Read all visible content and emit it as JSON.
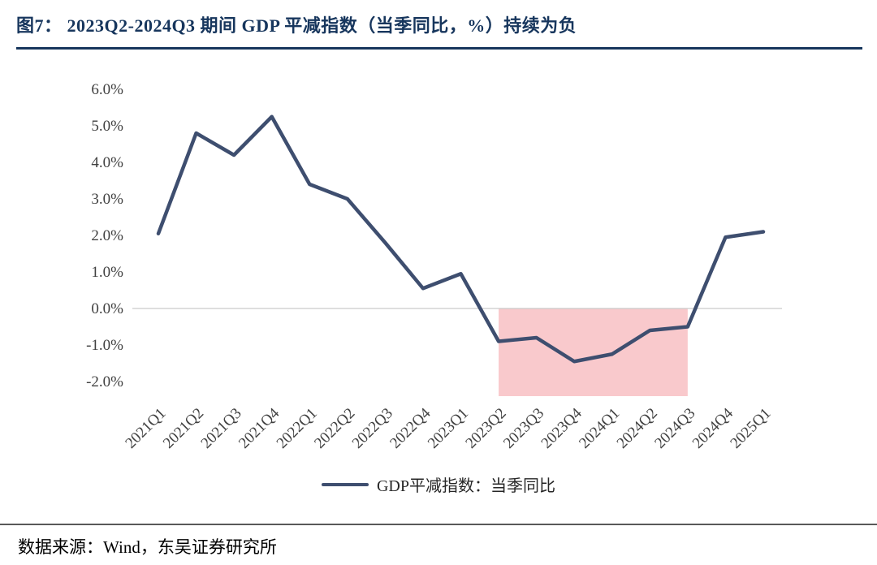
{
  "figure": {
    "title": "图7：  2023Q2-2024Q3 期间 GDP 平减指数（当季同比，%）持续为负",
    "source": "数据来源：Wind，东吴证券研究所"
  },
  "legend": {
    "label": "GDP平减指数：当季同比"
  },
  "colors": {
    "title": "#17365D",
    "line": "#3E4E6F",
    "highlight": "#F9C9CC",
    "gridline": "#C9C9C9",
    "tick_text": "#404040"
  },
  "chart_data": {
    "type": "line",
    "title": "2023Q2-2024Q3 期间 GDP 平减指数（当季同比，%）持续为负",
    "xlabel": "",
    "ylabel": "",
    "ylim": [
      -2.4,
      6.0
    ],
    "grid": "zero-line-only",
    "legend_position": "bottom-center",
    "x": [
      "2021Q1",
      "2021Q2",
      "2021Q3",
      "2021Q4",
      "2022Q1",
      "2022Q2",
      "2022Q3",
      "2022Q4",
      "2023Q1",
      "2023Q2",
      "2023Q3",
      "2023Q4",
      "2024Q1",
      "2024Q2",
      "2024Q3",
      "2024Q4",
      "2025Q1"
    ],
    "series": [
      {
        "name": "GDP平减指数：当季同比",
        "values": [
          2.05,
          4.8,
          4.2,
          5.25,
          3.4,
          3.0,
          1.8,
          0.55,
          0.95,
          -0.9,
          -0.8,
          -1.45,
          -1.25,
          -0.6,
          -0.5,
          1.95,
          2.1
        ]
      }
    ],
    "yticks": [
      {
        "value": 6,
        "label": "6.0%"
      },
      {
        "value": 5,
        "label": "5.0%"
      },
      {
        "value": 4,
        "label": "4.0%"
      },
      {
        "value": 3,
        "label": "3.0%"
      },
      {
        "value": 2,
        "label": "2.0%"
      },
      {
        "value": 1,
        "label": "1.0%"
      },
      {
        "value": 0,
        "label": "0.0%"
      },
      {
        "value": -1,
        "label": "-1.0%"
      },
      {
        "value": -2,
        "label": "-2.0%"
      }
    ],
    "highlight_region": {
      "x_start": "2023Q2",
      "x_end": "2024Q3",
      "y_top": 0,
      "y_bottom": -2.4,
      "color": "#F9C9CC"
    }
  }
}
